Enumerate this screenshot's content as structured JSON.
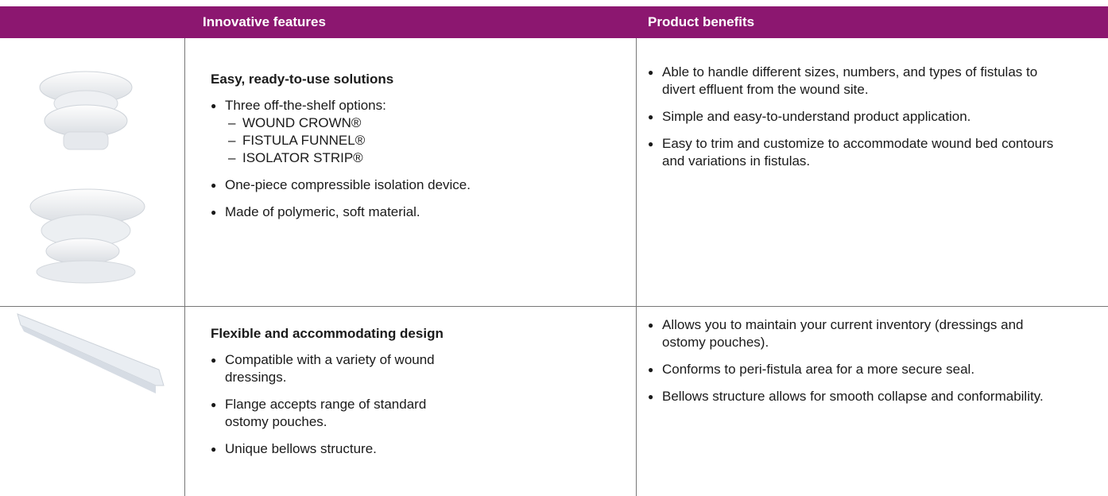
{
  "header": {
    "columns": [
      "Innovative features",
      "Product benefits"
    ]
  },
  "rows": [
    {
      "features": {
        "title": "Easy, ready-to-use solutions",
        "items": [
          {
            "text": "Three off-the-shelf options:",
            "subitems": [
              "WOUND CROWN®",
              "FISTULA FUNNEL®",
              "ISOLATOR STRIP®"
            ]
          },
          {
            "text": "One-piece compressible isolation device."
          },
          {
            "text": "Made of polymeric, soft material."
          }
        ]
      },
      "benefits": [
        "Able to handle different sizes, numbers, and types of fistulas to divert effluent from the wound site.",
        "Simple and easy-to-understand product application.",
        "Easy to trim and customize to accommodate wound bed contours and variations in fistulas."
      ]
    },
    {
      "features": {
        "title": "Flexible and accommodating design",
        "items": [
          {
            "text": "Compatible with a variety of wound dressings."
          },
          {
            "text": "Flange accepts range of standard ostomy pouches."
          },
          {
            "text": "Unique bellows structure."
          }
        ]
      },
      "benefits": [
        "Allows you to maintain your current inventory (dressings and ostomy pouches).",
        "Conforms to peri-fistula area for a more secure seal.",
        "Bellows structure allows for smooth collapse and conformability."
      ]
    }
  ]
}
